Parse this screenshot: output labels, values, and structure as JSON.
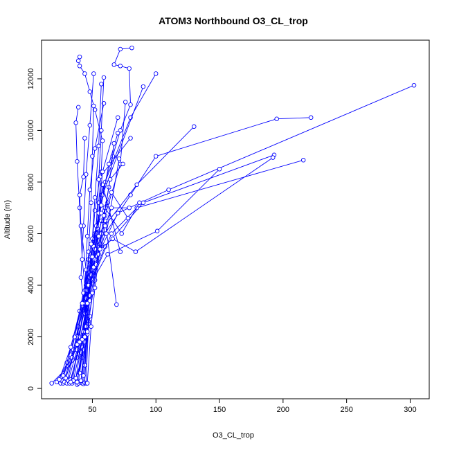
{
  "chart_data": {
    "type": "line",
    "title": "ATOM3 Northbound O3_CL_trop",
    "xlabel": "O3_CL_trop",
    "ylabel": "Altitude (m)",
    "xlim": [
      10,
      315
    ],
    "ylim": [
      -400,
      13500
    ],
    "xticks": [
      50,
      100,
      150,
      200,
      250,
      300
    ],
    "yticks": [
      0,
      2000,
      4000,
      6000,
      8000,
      10000,
      12000
    ],
    "grid": false,
    "legend": "none",
    "colors": {
      "series": "#0000ff",
      "axis": "#000000"
    },
    "series": [
      {
        "x": [
          18,
          38,
          39,
          44,
          48,
          52,
          55,
          57,
          58,
          52,
          48,
          44,
          40,
          39,
          40
        ],
        "y": [
          200,
          1200,
          2400,
          3600,
          4800,
          6000,
          7200,
          8400,
          9600,
          10800,
          11500,
          12200,
          12500,
          12700,
          12850
        ]
      },
      {
        "x": [
          22,
          36,
          44,
          50,
          53,
          57,
          66,
          72,
          80,
          79,
          72,
          67,
          72,
          81
        ],
        "y": [
          250,
          1500,
          3000,
          4500,
          6000,
          7500,
          9000,
          10000,
          11000,
          12400,
          12500,
          12550,
          13150,
          13200
        ]
      },
      {
        "x": [
          25,
          30,
          40,
          50,
          60,
          80,
          100
        ],
        "y": [
          200,
          1000,
          3000,
          5500,
          8000,
          10500,
          12200
        ]
      },
      {
        "x": [
          26,
          33,
          45,
          58,
          90
        ],
        "y": [
          300,
          1300,
          4000,
          7500,
          11700
        ]
      },
      {
        "x": [
          27,
          35,
          45,
          60,
          80,
          100,
          195,
          222
        ],
        "y": [
          200,
          1500,
          3500,
          6000,
          7500,
          9000,
          10450,
          10500
        ]
      },
      {
        "x": [
          28,
          34,
          42,
          55,
          85,
          130
        ],
        "y": [
          250,
          1200,
          3200,
          6000,
          7900,
          10150
        ]
      },
      {
        "x": [
          30,
          38,
          48,
          70,
          110,
          303
        ],
        "y": [
          200,
          2000,
          4500,
          6800,
          7700,
          11750
        ]
      },
      {
        "x": [
          31,
          38,
          46,
          60,
          90,
          193
        ],
        "y": [
          300,
          1500,
          3800,
          5500,
          7200,
          9050
        ]
      },
      {
        "x": [
          32,
          40,
          50,
          65,
          85,
          216
        ],
        "y": [
          200,
          1600,
          4200,
          6000,
          7000,
          8850
        ]
      },
      {
        "x": [
          33,
          41,
          48,
          62,
          101,
          150
        ],
        "y": [
          350,
          1800,
          4000,
          5200,
          6100,
          8500
        ]
      },
      {
        "x": [
          34,
          40,
          47,
          66,
          84,
          192
        ],
        "y": [
          200,
          2000,
          5000,
          5800,
          5300,
          8950
        ]
      },
      {
        "x": [
          36,
          42,
          47,
          52,
          56,
          60,
          69
        ],
        "y": [
          250,
          1200,
          2600,
          4200,
          5600,
          6500,
          3250
        ]
      },
      {
        "x": [
          38,
          41,
          44,
          48,
          53,
          57,
          62
        ],
        "y": [
          150,
          1400,
          2900,
          4300,
          5400,
          6500,
          7200
        ]
      },
      {
        "x": [
          39,
          42,
          46,
          50,
          54,
          58,
          72
        ],
        "y": [
          200,
          1600,
          3100,
          4600,
          6200,
          7900,
          5300
        ]
      },
      {
        "x": [
          41,
          43,
          46,
          49,
          52,
          56,
          80
        ],
        "y": [
          250,
          1500,
          3300,
          5100,
          6900,
          8200,
          9700
        ]
      },
      {
        "x": [
          42,
          44,
          45,
          47,
          49,
          50,
          51
        ],
        "y": [
          200,
          1800,
          3500,
          5300,
          7200,
          9000,
          10950
        ]
      },
      {
        "x": [
          43,
          45,
          44,
          46,
          48,
          52,
          59
        ],
        "y": [
          180,
          2000,
          3800,
          5900,
          7700,
          9300,
          11050
        ]
      },
      {
        "x": [
          44,
          46,
          41,
          43,
          45,
          48,
          51
        ],
        "y": [
          220,
          2200,
          4300,
          6300,
          8300,
          10200,
          12200
        ]
      },
      {
        "x": [
          45,
          47,
          42,
          40,
          38,
          37,
          39
        ],
        "y": [
          200,
          2500,
          5000,
          7000,
          8800,
          10300,
          10900
        ]
      },
      {
        "x": [
          44,
          48,
          45,
          41,
          40,
          43,
          44
        ],
        "y": [
          900,
          2800,
          4600,
          6300,
          7500,
          8200,
          9700
        ]
      },
      {
        "x": [
          43,
          46,
          48,
          50,
          52,
          55,
          57
        ],
        "y": [
          500,
          2100,
          4000,
          5800,
          7400,
          9400,
          11800
        ]
      },
      {
        "x": [
          40,
          45,
          49,
          53,
          55,
          57,
          59
        ],
        "y": [
          600,
          2400,
          4400,
          6300,
          8100,
          10000,
          12050
        ]
      },
      {
        "x": [
          37,
          43,
          47,
          51,
          55,
          58,
          70
        ],
        "y": [
          400,
          2200,
          4000,
          5500,
          6800,
          8400,
          10500
        ]
      },
      {
        "x": [
          35,
          42,
          48,
          52,
          57,
          63,
          70
        ],
        "y": [
          300,
          1900,
          3600,
          5400,
          7100,
          8700,
          9900
        ]
      },
      {
        "x": [
          29,
          38,
          45,
          52,
          60,
          72,
          76
        ],
        "y": [
          400,
          1700,
          3300,
          5000,
          6700,
          8700,
          11100
        ]
      },
      {
        "x": [
          27,
          36,
          43,
          49,
          57,
          65,
          78
        ],
        "y": [
          500,
          2000,
          3700,
          5600,
          6800,
          7600,
          6600
        ]
      },
      {
        "x": [
          24,
          33,
          42,
          50,
          60,
          73,
          87
        ],
        "y": [
          350,
          1600,
          3300,
          5100,
          7000,
          6000,
          7200
        ]
      },
      {
        "x": [
          33,
          40,
          46,
          51,
          55,
          61,
          71
        ],
        "y": [
          250,
          1800,
          3300,
          4700,
          5900,
          6000,
          8900
        ]
      },
      {
        "x": [
          38,
          44,
          48,
          53,
          57,
          63,
          67
        ],
        "y": [
          250,
          2000,
          3400,
          4800,
          6000,
          7800,
          9500
        ]
      },
      {
        "x": [
          41,
          46,
          50,
          55,
          59,
          64,
          74
        ],
        "y": [
          300,
          2200,
          3700,
          5200,
          6700,
          8100,
          8700
        ]
      },
      {
        "x": [
          46,
          49,
          52,
          56,
          60,
          65,
          79
        ],
        "y": [
          200,
          2400,
          3900,
          5400,
          6300,
          7000,
          7000
        ]
      }
    ]
  }
}
